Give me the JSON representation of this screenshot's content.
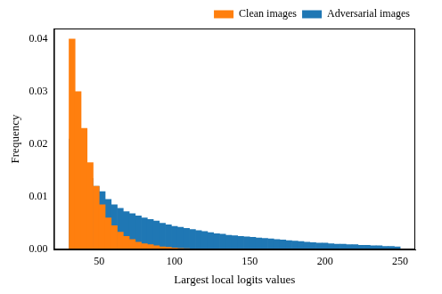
{
  "chart_data": {
    "type": "histogram",
    "x_label": "Largest local logits values",
    "y_label": "Frequency",
    "bins": [
      30,
      34,
      38,
      42,
      46,
      50,
      54,
      58,
      62,
      66,
      70,
      74,
      78,
      82,
      86,
      90,
      94,
      98,
      102,
      106,
      110,
      114,
      118,
      122,
      126,
      130,
      134,
      138,
      142,
      146,
      150,
      154,
      158,
      162,
      166,
      170,
      174,
      178,
      182,
      186,
      190,
      194,
      198,
      202,
      206,
      210,
      214,
      218,
      222,
      226,
      230,
      234,
      238,
      242,
      246,
      250
    ],
    "series": [
      {
        "name": "Adversarial images",
        "color": "#1f77b4",
        "values": [
          0.021,
          0.018,
          0.0155,
          0.0135,
          0.012,
          0.011,
          0.0095,
          0.0085,
          0.0078,
          0.0072,
          0.0068,
          0.0064,
          0.006,
          0.0057,
          0.0054,
          0.005,
          0.0047,
          0.0044,
          0.0042,
          0.004,
          0.0038,
          0.0036,
          0.0034,
          0.0032,
          0.003,
          0.0029,
          0.0027,
          0.0026,
          0.0025,
          0.0024,
          0.0023,
          0.0022,
          0.0021,
          0.002,
          0.0019,
          0.0018,
          0.0017,
          0.0016,
          0.0015,
          0.0014,
          0.0013,
          0.0012,
          0.0012,
          0.0011,
          0.001,
          0.001,
          0.0009,
          0.0009,
          0.0008,
          0.0008,
          0.0007,
          0.0007,
          0.0006,
          0.0006,
          0.0005
        ]
      },
      {
        "name": "Clean images",
        "color": "#ff7f0e",
        "values": [
          0.04,
          0.03,
          0.023,
          0.0165,
          0.012,
          0.0085,
          0.006,
          0.0045,
          0.0033,
          0.0025,
          0.0019,
          0.0014,
          0.0011,
          0.0009,
          0.0007,
          0.0005,
          0.0004,
          0.0003,
          0.0002,
          0.00015,
          0.0001,
          0.0001,
          0.0001,
          5e-05,
          0,
          0,
          0,
          0,
          0,
          0,
          0,
          0,
          0,
          0,
          0,
          0,
          0,
          0,
          0,
          0,
          0,
          0,
          0,
          0,
          0,
          0,
          0,
          0,
          0,
          0,
          0,
          0,
          0,
          0,
          0
        ]
      }
    ],
    "xlim": [
      20,
      260
    ],
    "xticks": [
      50,
      100,
      150,
      200,
      250
    ],
    "ylim": [
      0,
      0.042
    ],
    "yticks": [
      {
        "value": 0,
        "label": "0.00"
      },
      {
        "value": 0.01,
        "label": "0.01"
      },
      {
        "value": 0.02,
        "label": "0.02"
      },
      {
        "value": 0.03,
        "label": "0.03"
      },
      {
        "value": 0.04,
        "label": "0.04"
      }
    ],
    "grid": false,
    "legend": "upper right"
  }
}
